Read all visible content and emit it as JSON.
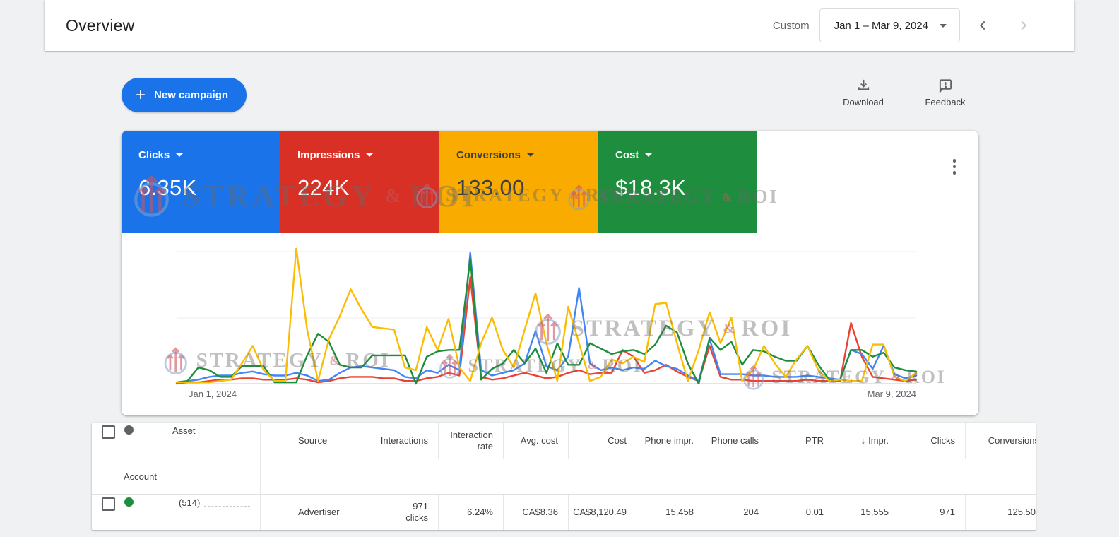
{
  "header": {
    "title": "Overview",
    "range_type_label": "Custom",
    "date_range": "Jan 1 – Mar 9, 2024"
  },
  "toolbar": {
    "new_campaign_label": "New campaign",
    "download_label": "Download",
    "feedback_label": "Feedback"
  },
  "scorecards": [
    {
      "label": "Clicks",
      "value": "6.35K",
      "color": "#1a73e8",
      "text_color": "#ffffff"
    },
    {
      "label": "Impressions",
      "value": "224K",
      "color": "#d93025",
      "text_color": "#ffffff"
    },
    {
      "label": "Conversions",
      "value": "133.00",
      "color": "#f9ab00",
      "text_color": "#3c4043"
    },
    {
      "label": "Cost",
      "value": "$18.3K",
      "color": "#1e8e3e",
      "text_color": "#ffffff"
    }
  ],
  "watermark": {
    "text": "STRATEGY",
    "amp": "&",
    "suffix": "ROI"
  },
  "chart_data": {
    "type": "line",
    "x_start_label": "Jan 1, 2024",
    "x_end_label": "Mar 9, 2024",
    "x_range": [
      "Jan 1, 2024",
      "Mar 9, 2024"
    ],
    "x_points": 69,
    "ylim": [
      0,
      100
    ],
    "grid": true,
    "legend_position": "none",
    "note": "values are normalized daily metric levels (percent of plot height), one point per day",
    "series": [
      {
        "name": "Clicks",
        "color": "#4285f4",
        "values": [
          1,
          2,
          3,
          5,
          6,
          6,
          8,
          9,
          7,
          6,
          6,
          8,
          6,
          2,
          3,
          8,
          12,
          13,
          12,
          11,
          10,
          5,
          4,
          10,
          8,
          14,
          10,
          97,
          10,
          6,
          8,
          10,
          15,
          39,
          13,
          10,
          20,
          71,
          15,
          10,
          12,
          10,
          12,
          11,
          17,
          13,
          11,
          6,
          2,
          33,
          7,
          7,
          7,
          6,
          6,
          5,
          5,
          5,
          6,
          5,
          4,
          3,
          25,
          22,
          11,
          28,
          7,
          4,
          6
        ]
      },
      {
        "name": "Impressions",
        "color": "#ea4335",
        "values": [
          0,
          1,
          1,
          2,
          3,
          3,
          4,
          4,
          3,
          3,
          3,
          4,
          3,
          1,
          2,
          4,
          5,
          5,
          5,
          4,
          4,
          2,
          2,
          4,
          5,
          8,
          6,
          79,
          5,
          3,
          4,
          6,
          8,
          6,
          4,
          5,
          8,
          10,
          7,
          8,
          8,
          25,
          20,
          8,
          10,
          14,
          9,
          5,
          2,
          28,
          5,
          3,
          3,
          2,
          2,
          2,
          2,
          2,
          3,
          2,
          2,
          2,
          45,
          20,
          5,
          4,
          3,
          2,
          3
        ]
      },
      {
        "name": "Conversions",
        "color": "#fbbc04",
        "values": [
          1,
          1,
          1,
          1,
          2,
          3,
          15,
          28,
          10,
          2,
          2,
          100,
          40,
          2,
          33,
          50,
          70,
          55,
          42,
          41,
          40,
          12,
          10,
          42,
          25,
          48,
          12,
          2,
          30,
          49,
          25,
          12,
          40,
          67,
          30,
          2,
          57,
          30,
          2,
          5,
          18,
          15,
          20,
          16,
          59,
          60,
          30,
          2,
          25,
          53,
          30,
          49,
          2,
          10,
          28,
          15,
          5,
          18,
          28,
          10,
          2,
          3,
          2,
          2,
          29,
          29,
          5,
          2,
          8
        ]
      },
      {
        "name": "Cost",
        "color": "#1e8e3e",
        "values": [
          1,
          2,
          12,
          10,
          5,
          5,
          13,
          13,
          13,
          1,
          1,
          1,
          21,
          37,
          31,
          14,
          12,
          12,
          21,
          21,
          21,
          21,
          0,
          20,
          24,
          25,
          25,
          93,
          3,
          11,
          15,
          25,
          15,
          26,
          8,
          30,
          14,
          14,
          30,
          26,
          22,
          24,
          25,
          22,
          29,
          43,
          38,
          15,
          0,
          34,
          25,
          31,
          14,
          25,
          24,
          20,
          17,
          17,
          28,
          14,
          3,
          3,
          25,
          25,
          20,
          23,
          12,
          10,
          9
        ]
      }
    ]
  },
  "table": {
    "sort_indicator": "↓",
    "columns": [
      {
        "label": "Asset"
      },
      {
        "label": ""
      },
      {
        "label": "Source"
      },
      {
        "label": "Interactions"
      },
      {
        "label": "Interaction rate"
      },
      {
        "label": "Avg. cost"
      },
      {
        "label": "Cost"
      },
      {
        "label": "Phone impr."
      },
      {
        "label": "Phone calls"
      },
      {
        "label": "PTR"
      },
      {
        "label": "Impr."
      },
      {
        "label": "Clicks"
      },
      {
        "label": "Conversions"
      }
    ],
    "group_row_label": "Account",
    "rows": [
      {
        "asset": "(514)",
        "status_color": "#1e8e3e",
        "source": "Advertiser",
        "interactions_value": "971",
        "interactions_unit": "clicks",
        "interaction_rate": "6.24%",
        "avg_cost": "CA$8.36",
        "cost": "CA$8,120.49",
        "phone_impr": "15,458",
        "phone_calls": "204",
        "ptr": "0.01",
        "impr": "15,555",
        "clicks": "971",
        "conversions": "125.50"
      }
    ]
  }
}
